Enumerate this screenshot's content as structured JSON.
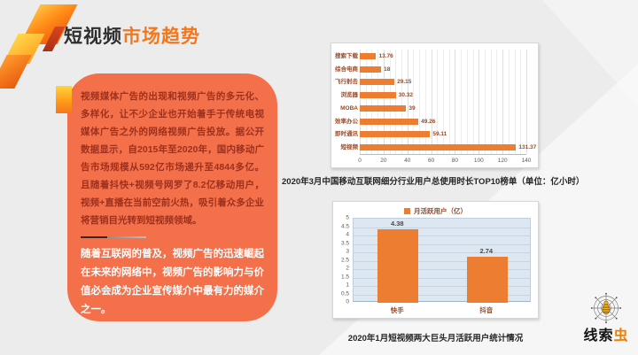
{
  "header": {
    "title_black": "短视频",
    "title_orange": "市场趋势"
  },
  "left_panel": {
    "paragraph1": "视频媒体广告的出现和视频广告的多元化、多样化，让不少企业也开始着手于传统电视媒体广告之外的网络视频广告投放。据公开数据显示，自2015年至2020年，国内移动广告市场规模从592亿市场递升至4844多亿。且随着抖快+视频号网罗了8.2亿移动用户，视频+直播在当前空前火热，吸引着众多企业将营销目光转到短视频领域。",
    "paragraph2": "随着互联网的普及，视频广告的迅速崛起在未来的网络中，视频广告的影响力与价值必会成为企业宣传媒介中最有力的媒介之一。"
  },
  "captions": {
    "chart1": "2020年3月中国移动互联网细分行业用户总使用时长TOP10榜单（单位：亿小时）",
    "chart2": "2020年1月短视频两大巨头月活跃用户统计情况"
  },
  "chart_data": [
    {
      "type": "bar",
      "orientation": "horizontal",
      "title": "2020年3月中国移动互联网细分行业用户总使用时长TOP10榜单（单位：亿小时）",
      "categories_top_to_bottom": [
        "搜索下载",
        "综合电商",
        "飞行射击",
        "浏览器",
        "MOBA",
        "效率办公",
        "即时通讯",
        "短视频"
      ],
      "values": [
        13.76,
        18,
        29.15,
        30.32,
        39,
        49.26,
        59.11,
        131.37
      ],
      "xlabel": "",
      "ylabel": "",
      "xlim": [
        0,
        140
      ],
      "x_ticks": [
        0,
        20,
        40,
        60,
        80,
        100,
        120,
        140
      ],
      "minor_grid_step": 5,
      "grid": "on",
      "bar_color": "#ed7d31"
    },
    {
      "type": "bar",
      "orientation": "vertical",
      "title": "2020年1月短视频两大巨头月活跃用户统计情况",
      "legend": "月活跃用户（亿）",
      "legend_position": "top",
      "categories": [
        "快手",
        "抖音"
      ],
      "values": [
        4.38,
        2.74
      ],
      "xlabel": "",
      "ylabel": "",
      "ylim": [
        0,
        5
      ],
      "y_step": 0.5,
      "grid": "on",
      "bar_color": "#ed7d31",
      "plot_bg": "#dde7f1"
    }
  ],
  "logo": {
    "text_black": "线索",
    "text_orange": "虫"
  }
}
